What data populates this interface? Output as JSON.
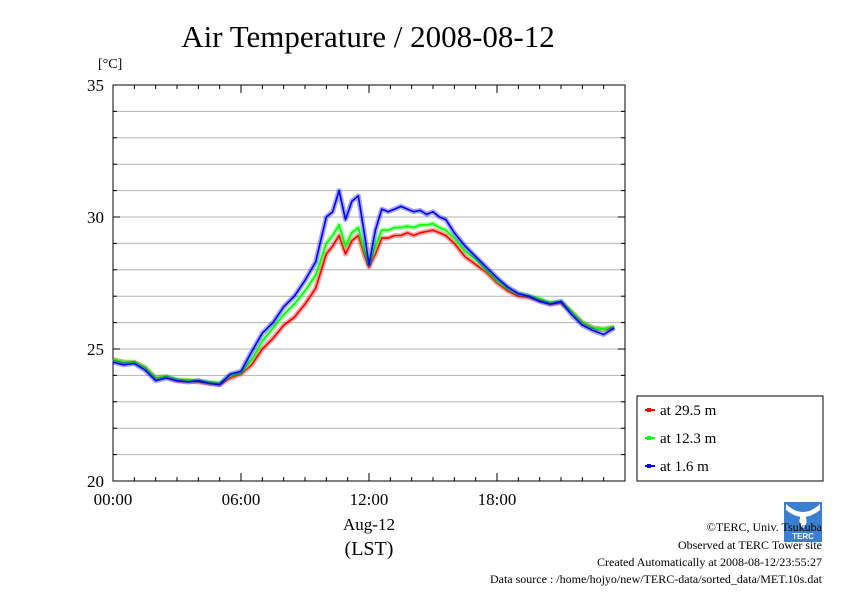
{
  "chart_data": {
    "type": "line",
    "title": "Air Temperature / 2008-08-12",
    "y_unit": "[°C]",
    "ylim": [
      20,
      35
    ],
    "yticks": [
      20,
      25,
      30,
      35
    ],
    "xlim": [
      0,
      24
    ],
    "xticks": [
      0,
      6,
      12,
      18
    ],
    "xtick_labels": [
      "00:00",
      "06:00",
      "12:00",
      "18:00"
    ],
    "xlabel_date": "Aug-12",
    "xlabel": "(LST)",
    "grid": true,
    "legend_position": "bottom-right",
    "series": [
      {
        "name": "at 29.5 m",
        "color": "#ff0000",
        "x": [
          0,
          0.5,
          1,
          1.5,
          2,
          2.5,
          3,
          3.5,
          4,
          4.5,
          5,
          5.5,
          6,
          6.5,
          7,
          7.5,
          8,
          8.5,
          9,
          9.5,
          10,
          10.3,
          10.6,
          10.9,
          11.2,
          11.5,
          11.8,
          12,
          12.3,
          12.6,
          12.9,
          13.2,
          13.5,
          13.8,
          14.1,
          14.4,
          14.7,
          15,
          15.3,
          15.6,
          16,
          16.5,
          17,
          17.5,
          18,
          18.5,
          19,
          19.5,
          20,
          20.5,
          21,
          21.5,
          22,
          22.5,
          23,
          23.5
        ],
        "y": [
          24.6,
          24.5,
          24.5,
          24.3,
          23.9,
          23.95,
          23.8,
          23.8,
          23.75,
          23.7,
          23.65,
          23.9,
          24.05,
          24.4,
          25.0,
          25.4,
          25.9,
          26.2,
          26.7,
          27.3,
          28.6,
          28.9,
          29.3,
          28.6,
          29.1,
          29.3,
          28.5,
          28.1,
          28.6,
          29.2,
          29.2,
          29.3,
          29.3,
          29.4,
          29.3,
          29.4,
          29.45,
          29.5,
          29.4,
          29.3,
          29.0,
          28.5,
          28.2,
          27.9,
          27.5,
          27.2,
          27.0,
          26.95,
          26.85,
          26.7,
          26.75,
          26.4,
          26.0,
          25.8,
          25.75,
          25.8
        ]
      },
      {
        "name": "at 12.3 m",
        "color": "#00ff00",
        "x": [
          0,
          0.5,
          1,
          1.5,
          2,
          2.5,
          3,
          3.5,
          4,
          4.5,
          5,
          5.5,
          6,
          6.5,
          7,
          7.5,
          8,
          8.5,
          9,
          9.5,
          10,
          10.3,
          10.6,
          10.9,
          11.2,
          11.5,
          11.8,
          12,
          12.3,
          12.6,
          12.9,
          13.2,
          13.5,
          13.8,
          14.1,
          14.4,
          14.7,
          15,
          15.3,
          15.6,
          16,
          16.5,
          17,
          17.5,
          18,
          18.5,
          19,
          19.5,
          20,
          20.5,
          21,
          21.5,
          22,
          22.5,
          23,
          23.5
        ],
        "y": [
          24.6,
          24.5,
          24.5,
          24.3,
          23.9,
          23.95,
          23.85,
          23.8,
          23.8,
          23.75,
          23.7,
          24.0,
          24.1,
          24.6,
          25.3,
          25.8,
          26.3,
          26.7,
          27.2,
          27.8,
          29.0,
          29.3,
          29.7,
          28.9,
          29.4,
          29.6,
          28.7,
          28.2,
          28.9,
          29.5,
          29.5,
          29.6,
          29.6,
          29.65,
          29.6,
          29.7,
          29.7,
          29.75,
          29.6,
          29.5,
          29.2,
          28.7,
          28.4,
          28.0,
          27.6,
          27.3,
          27.1,
          27.0,
          26.9,
          26.75,
          26.8,
          26.4,
          26.0,
          25.8,
          25.75,
          25.85
        ]
      },
      {
        "name": "at 1.6 m",
        "color": "#0000ff",
        "x": [
          0,
          0.5,
          1,
          1.5,
          2,
          2.5,
          3,
          3.5,
          4,
          4.5,
          5,
          5.5,
          6,
          6.5,
          7,
          7.5,
          8,
          8.5,
          9,
          9.5,
          10,
          10.3,
          10.6,
          10.9,
          11.2,
          11.5,
          11.8,
          12,
          12.3,
          12.6,
          12.9,
          13.2,
          13.5,
          13.8,
          14.1,
          14.4,
          14.7,
          15,
          15.3,
          15.6,
          16,
          16.5,
          17,
          17.5,
          18,
          18.5,
          19,
          19.5,
          20,
          20.5,
          21,
          21.5,
          22,
          22.5,
          23,
          23.5
        ],
        "y": [
          24.5,
          24.4,
          24.45,
          24.2,
          23.8,
          23.9,
          23.8,
          23.75,
          23.8,
          23.7,
          23.65,
          24.05,
          24.15,
          24.9,
          25.6,
          26.0,
          26.6,
          27.0,
          27.6,
          28.3,
          30.0,
          30.2,
          31.0,
          29.9,
          30.6,
          30.8,
          29.3,
          28.2,
          29.5,
          30.3,
          30.2,
          30.3,
          30.4,
          30.3,
          30.2,
          30.25,
          30.1,
          30.2,
          30.0,
          29.9,
          29.4,
          28.9,
          28.5,
          28.1,
          27.7,
          27.35,
          27.1,
          27.0,
          26.8,
          26.7,
          26.8,
          26.3,
          25.9,
          25.7,
          25.55,
          25.8
        ]
      }
    ]
  },
  "footer": {
    "credit": "©TERC, Univ. Tsukuba",
    "observed": "Observed at TERC Tower site",
    "created": "Created Automatically at 2008-08-12/23:55:27",
    "source": "Data source : /home/hojyo/new/TERC-data/sorted_data/MET.10s.dat",
    "logo_text": "TERC"
  }
}
